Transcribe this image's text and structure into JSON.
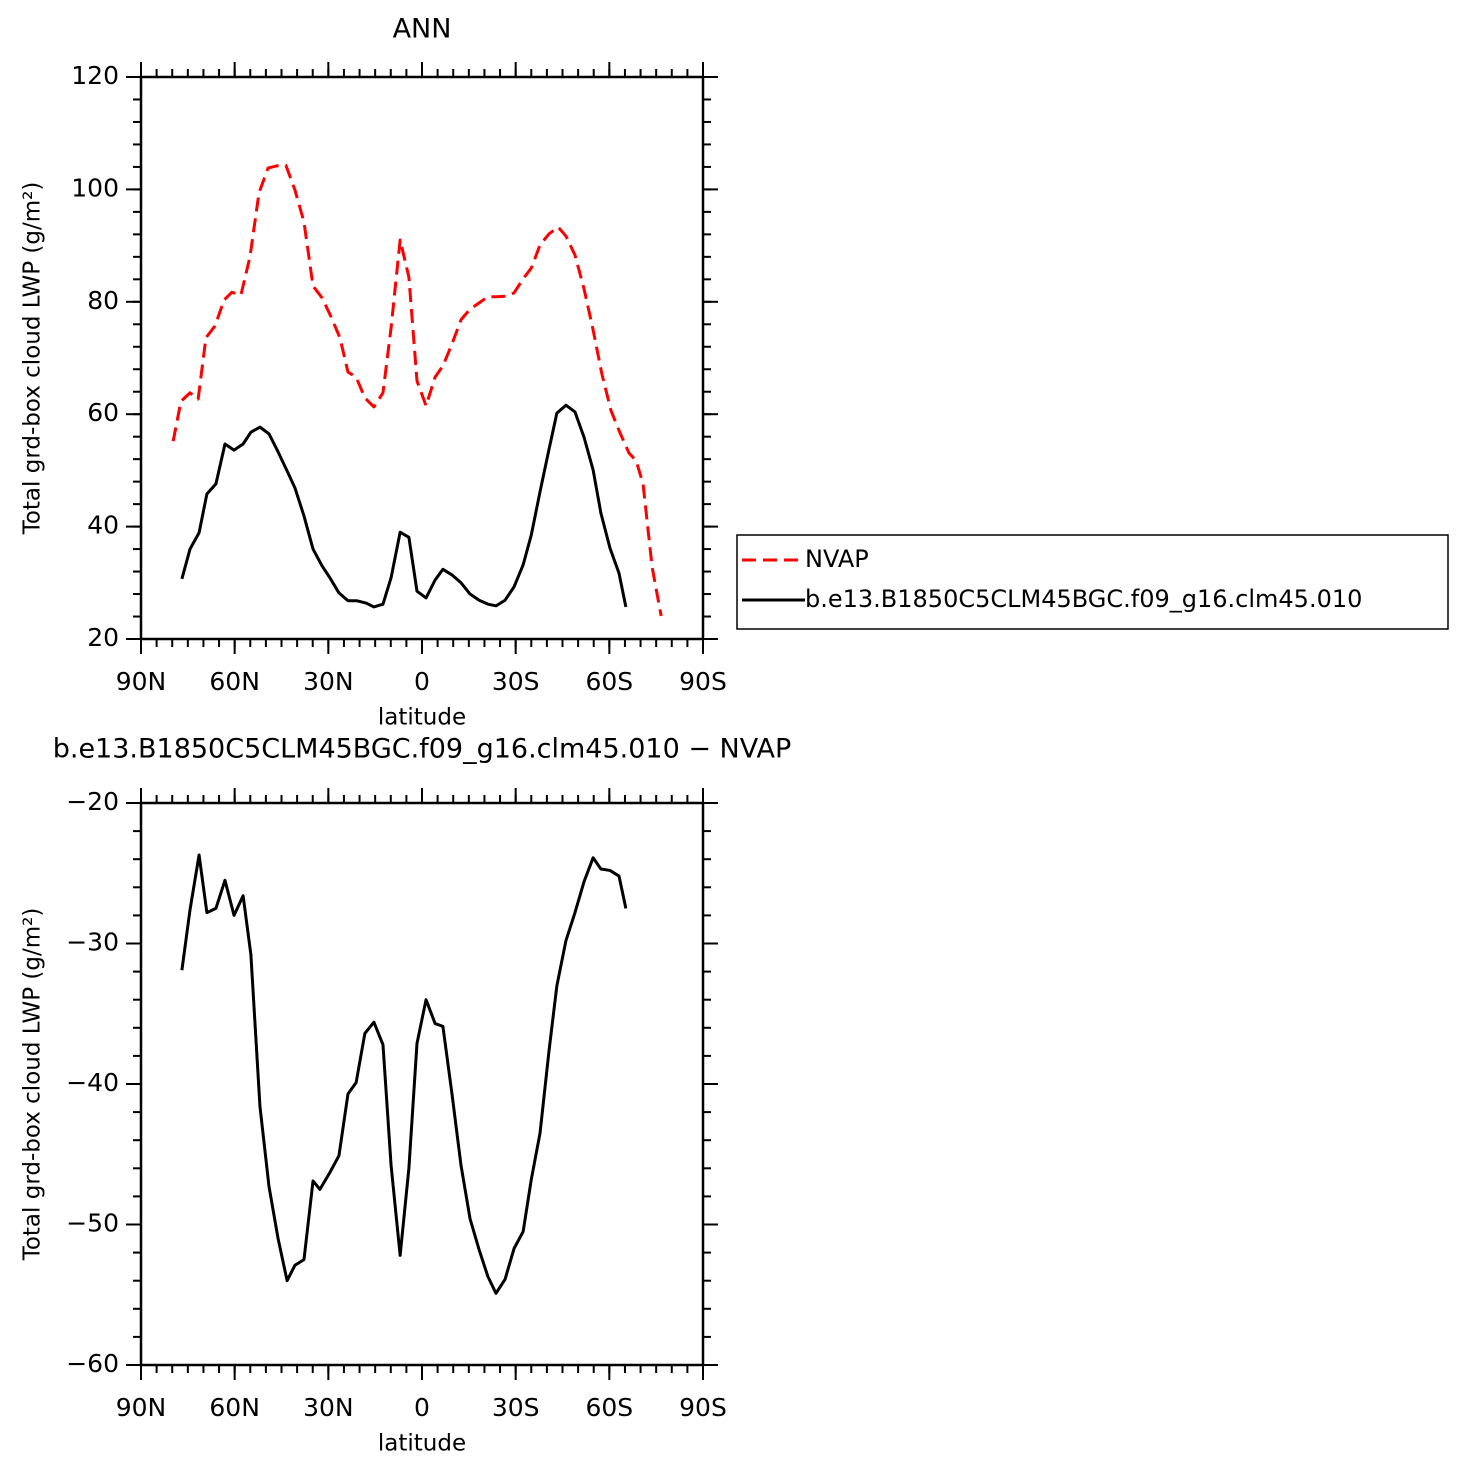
{
  "chart_data": [
    {
      "type": "line",
      "title": "ANN",
      "x_label": "latitude",
      "y_label": "Total grd-box cloud LWP (g/m²)",
      "xlim": [
        90,
        -90
      ],
      "xticks": [
        {
          "value": 90,
          "label": "90N"
        },
        {
          "value": 60,
          "label": "60N"
        },
        {
          "value": 30,
          "label": "30N"
        },
        0,
        {
          "value": -30,
          "label": "30S"
        },
        {
          "value": -60,
          "label": "60S"
        },
        {
          "value": -90,
          "label": "90S"
        }
      ],
      "ylim": [
        20,
        120
      ],
      "yticks": [
        20,
        40,
        60,
        80,
        100,
        120
      ],
      "legend_position": "right",
      "series": [
        {
          "name": "NVAP",
          "color": "#ff0000",
          "line_style": "dashed",
          "x": [
            79.7,
            77.2,
            74.3,
            71.7,
            69.2,
            66.3,
            63.4,
            60.9,
            58.0,
            55.1,
            52.2,
            49.3,
            46.4,
            43.6,
            40.7,
            37.8,
            34.9,
            32.0,
            29.1,
            26.3,
            23.7,
            21.1,
            18.3,
            15.4,
            12.5,
            9.9,
            7.0,
            4.2,
            1.6,
            -1.3,
            -4.2,
            -6.7,
            -9.6,
            -12.5,
            -15.4,
            -18.3,
            -21.1,
            -24.0,
            -26.9,
            -29.5,
            -32.4,
            -35.0,
            -37.8,
            -40.7,
            -43.6,
            -46.1,
            -49.0,
            -51.9,
            -54.8,
            -57.6,
            -60.5,
            -63.4,
            -66.3,
            -68.6,
            -70.8,
            -73.7,
            -76.6
          ],
          "values": [
            55.2,
            62.3,
            63.8,
            62.7,
            73.6,
            75.7,
            80.3,
            81.7,
            81.2,
            88.0,
            99.4,
            103.8,
            104.2,
            104.3,
            99.9,
            94.2,
            82.8,
            80.7,
            77.3,
            73.6,
            67.5,
            66.6,
            62.9,
            61.3,
            63.8,
            75.4,
            91.0,
            84.4,
            65.9,
            61.5,
            66.6,
            68.6,
            72.5,
            76.8,
            78.7,
            79.8,
            80.9,
            80.9,
            81.0,
            81.6,
            84.1,
            86.0,
            90.1,
            92.1,
            93.3,
            91.7,
            88.3,
            82.3,
            75.0,
            67.2,
            60.7,
            56.7,
            53.1,
            51.7,
            47.6,
            32.8,
            24.1
          ]
        },
        {
          "name": "b.e13.B1850C5CLM45BGC.f09_g16.clm45.010",
          "color": "#000000",
          "line_style": "solid",
          "x": [
            76.9,
            74.3,
            71.4,
            68.9,
            66.0,
            63.1,
            60.2,
            57.3,
            54.8,
            51.9,
            49.0,
            46.1,
            43.2,
            40.7,
            37.8,
            34.9,
            32.0,
            29.5,
            26.6,
            23.7,
            20.8,
            17.9,
            15.4,
            12.5,
            9.9,
            7.0,
            4.2,
            1.6,
            -1.3,
            -4.2,
            -6.7,
            -9.6,
            -12.5,
            -15.4,
            -18.3,
            -21.1,
            -23.7,
            -26.6,
            -29.5,
            -32.4,
            -35.0,
            -37.8,
            -40.7,
            -43.2,
            -46.1,
            -49.0,
            -51.9,
            -54.8,
            -57.3,
            -60.2,
            -63.1,
            -65.3
          ],
          "values": [
            30.7,
            36.0,
            38.9,
            45.8,
            47.6,
            54.7,
            53.6,
            54.7,
            56.8,
            57.7,
            56.5,
            53.3,
            49.9,
            46.9,
            41.9,
            36.0,
            33.0,
            30.9,
            28.2,
            26.8,
            26.8,
            26.4,
            25.7,
            26.2,
            30.9,
            39.0,
            38.1,
            28.5,
            27.3,
            30.5,
            32.4,
            31.4,
            30.0,
            28.0,
            26.9,
            26.2,
            25.9,
            26.9,
            29.3,
            33.2,
            38.5,
            46.2,
            53.8,
            60.2,
            61.6,
            60.4,
            55.9,
            50.1,
            42.4,
            36.2,
            31.7,
            25.7
          ]
        }
      ]
    },
    {
      "type": "line",
      "title": "b.e13.B1850C5CLM45BGC.f09_g16.clm45.010  −  NVAP",
      "x_label": "latitude",
      "y_label": "Total grd-box cloud LWP (g/m²)",
      "xlim": [
        90,
        -90
      ],
      "xticks": [
        {
          "value": 90,
          "label": "90N"
        },
        {
          "value": 60,
          "label": "60N"
        },
        {
          "value": 30,
          "label": "30N"
        },
        0,
        {
          "value": -30,
          "label": "30S"
        },
        {
          "value": -60,
          "label": "60S"
        },
        {
          "value": -90,
          "label": "90S"
        }
      ],
      "ylim": [
        -60,
        -20
      ],
      "yticks": [
        {
          "value": -60,
          "label": "−60"
        },
        {
          "value": -50,
          "label": "−50"
        },
        {
          "value": -40,
          "label": "−40"
        },
        {
          "value": -30,
          "label": "−30"
        },
        {
          "value": -20,
          "label": "−20"
        }
      ],
      "series": [
        {
          "color": "#000000",
          "line_style": "solid",
          "x": [
            76.9,
            74.3,
            71.4,
            68.9,
            66.0,
            63.1,
            60.2,
            57.3,
            54.8,
            51.9,
            49.0,
            46.1,
            43.2,
            40.7,
            37.8,
            34.9,
            32.7,
            29.5,
            26.6,
            23.7,
            21.1,
            18.3,
            15.4,
            12.5,
            9.9,
            7.0,
            4.2,
            1.6,
            -1.3,
            -4.2,
            -6.7,
            -9.6,
            -12.5,
            -15.4,
            -18.3,
            -21.1,
            -23.7,
            -26.6,
            -29.5,
            -32.4,
            -35.0,
            -37.8,
            -40.7,
            -43.2,
            -46.1,
            -49.0,
            -51.9,
            -54.8,
            -57.3,
            -60.2,
            -63.1,
            -65.3
          ],
          "values": [
            -31.9,
            -27.6,
            -23.7,
            -27.8,
            -27.5,
            -25.5,
            -28.0,
            -26.6,
            -30.8,
            -41.6,
            -47.3,
            -51.0,
            -54.0,
            -52.9,
            -52.5,
            -46.9,
            -47.5,
            -46.3,
            -45.1,
            -40.7,
            -39.9,
            -36.4,
            -35.6,
            -37.2,
            -45.8,
            -52.2,
            -46.0,
            -37.1,
            -34.0,
            -35.7,
            -35.9,
            -40.7,
            -45.8,
            -49.6,
            -51.8,
            -53.7,
            -54.9,
            -53.9,
            -51.7,
            -50.5,
            -46.8,
            -43.5,
            -37.6,
            -33.0,
            -29.8,
            -27.8,
            -25.6,
            -23.9,
            -24.7,
            -24.8,
            -25.2,
            -27.5
          ]
        }
      ]
    }
  ]
}
